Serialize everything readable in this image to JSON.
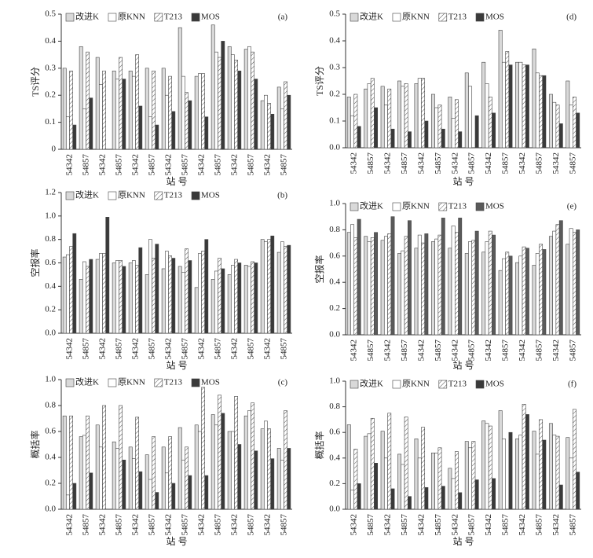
{
  "chart_data": [
    {
      "type": "bar",
      "panel_label": "(a)",
      "ylabel": "TS评分",
      "xlabel": "站 号",
      "legend": "top",
      "categories": [
        "54342",
        "54857",
        "54342",
        "54857",
        "54342",
        "54857",
        "54342",
        "54857",
        "54342",
        "54857",
        "54342",
        "54857",
        "54342",
        "54857"
      ],
      "ylim": [
        0,
        0.5
      ],
      "yticks": [
        0,
        0.1,
        0.2,
        0.3,
        0.4,
        0.5
      ],
      "series": [
        {
          "name": "改进K",
          "color": "#d9d9d9",
          "values": [
            0.3,
            0.38,
            0.34,
            0.29,
            0.29,
            0.3,
            0.3,
            0.45,
            0.27,
            0.46,
            0.38,
            0.37,
            0.18,
            0.23
          ]
        },
        {
          "name": "原KNN",
          "color": "#ffffff",
          "values": [
            0.12,
            0.15,
            0.24,
            0.26,
            0.27,
            0.12,
            0.2,
            0.27,
            0.28,
            0.36,
            0.35,
            0.38,
            0.2,
            0.15
          ]
        },
        {
          "name": "T213",
          "color": "#ffffff",
          "pattern": "diagonal",
          "values": [
            0.29,
            0.36,
            0.29,
            0.34,
            0.35,
            0.29,
            0.27,
            0.21,
            0.28,
            0.34,
            0.33,
            0.36,
            0.17,
            0.25
          ]
        },
        {
          "name": "MOS",
          "color": "#3a3a3a",
          "values": [
            0.09,
            0.19,
            0,
            0.26,
            0.16,
            0.09,
            0.14,
            0.18,
            0.12,
            0.4,
            0.29,
            0.26,
            0.13,
            0.2
          ]
        }
      ]
    },
    {
      "type": "bar",
      "panel_label": "(b)",
      "ylabel": "空报率",
      "xlabel": "站 号",
      "legend": "top",
      "categories": [
        "54342",
        "54857",
        "54342",
        "54857",
        "54342",
        "54857",
        "54342",
        "54857",
        "54342",
        "54857",
        "54342",
        "54857",
        "54342",
        "54857"
      ],
      "ylim": [
        0,
        1.2
      ],
      "yticks": [
        {
          "value": 0,
          "label": "0.0"
        },
        0.2,
        0.4,
        0.6,
        0.8,
        {
          "value": 1,
          "label": "1.0"
        },
        1.2
      ],
      "series": [
        {
          "name": "改进K",
          "color": "#d9d9d9",
          "values": [
            0.65,
            0.46,
            0.63,
            0.6,
            0.6,
            0.5,
            0.55,
            0.57,
            0.39,
            0.46,
            0.5,
            0.58,
            0.8,
            0.69
          ]
        },
        {
          "name": "原KNN",
          "color": "#ffffff",
          "values": [
            0.67,
            0.61,
            0.68,
            0.62,
            0.62,
            0.8,
            0.7,
            0.52,
            0.68,
            0.53,
            0.58,
            0.57,
            0.78,
            0.78
          ]
        },
        {
          "name": "T213",
          "color": "#ffffff",
          "pattern": "diagonal",
          "values": [
            0.74,
            0.57,
            0.68,
            0.62,
            0.58,
            0.64,
            0.66,
            0.72,
            0.7,
            0.64,
            0.63,
            0.61,
            0.8,
            0.74
          ]
        },
        {
          "name": "MOS",
          "color": "#3a3a3a",
          "values": [
            0.85,
            0.63,
            0.99,
            0.57,
            0.73,
            0.76,
            0.64,
            0.62,
            0.8,
            0.55,
            0.6,
            0.6,
            0.83,
            0.75
          ]
        }
      ]
    },
    {
      "type": "bar",
      "panel_label": "(c)",
      "ylabel": "概括率",
      "xlabel": "站 号",
      "legend": "top",
      "categories": [
        "54342",
        "54857",
        "54342",
        "54857",
        "54342",
        "54857",
        "54342",
        "54857",
        "54342",
        "54857",
        "54342",
        "54857",
        "54342",
        "54857"
      ],
      "ylim": [
        0,
        1
      ],
      "yticks": [
        {
          "value": 0,
          "label": "0.0"
        },
        0.2,
        0.4,
        0.6,
        0.8,
        {
          "value": 1,
          "label": "1.0"
        }
      ],
      "series": [
        {
          "name": "改进K",
          "color": "#d9d9d9",
          "values": [
            0.72,
            0.56,
            0.65,
            0.52,
            0.48,
            0.42,
            0.48,
            0.63,
            0.65,
            0.73,
            0.6,
            0.72,
            0.62,
            0.47
          ]
        },
        {
          "name": "原KNN",
          "color": "#ffffff",
          "values": [
            0.11,
            0.57,
            0.48,
            0.47,
            0.39,
            0.23,
            0.28,
            0.38,
            0.6,
            0.65,
            0.6,
            0.76,
            0.68,
            0.38
          ]
        },
        {
          "name": "T213",
          "color": "#ffffff",
          "pattern": "diagonal",
          "values": [
            0.72,
            0.72,
            0.8,
            0.8,
            0.71,
            0.56,
            0.56,
            0.48,
            0.94,
            0.88,
            0.87,
            0.82,
            0.62,
            0.76
          ]
        },
        {
          "name": "MOS",
          "color": "#3a3a3a",
          "values": [
            0.2,
            0.28,
            0,
            0.38,
            0.29,
            0.13,
            0.2,
            0.26,
            0.26,
            0.74,
            0.5,
            0.45,
            0.39,
            0.47
          ]
        }
      ]
    },
    {
      "type": "bar",
      "panel_label": "(d)",
      "ylabel": "TS评分",
      "xlabel": "站 号",
      "legend": "top",
      "categories": [
        "54342",
        "54857",
        "54342",
        "54857",
        "54342",
        "54857",
        "54342",
        "54857",
        "54342",
        "54857",
        "54342",
        "54857",
        "54342",
        "54857"
      ],
      "ylim": [
        0,
        0.5
      ],
      "yticks": [
        {
          "value": 0,
          "label": "0.0"
        },
        0.1,
        0.2,
        0.3,
        0.4,
        0.5
      ],
      "series": [
        {
          "name": "改进K",
          "color": "#d9d9d9",
          "values": [
            0.19,
            0.22,
            0.23,
            0.25,
            0.24,
            0.2,
            0.19,
            0.28,
            0.32,
            0.44,
            0.32,
            0.37,
            0.2,
            0.25
          ]
        },
        {
          "name": "原KNN",
          "color": "#ffffff",
          "values": [
            0.12,
            0.24,
            0.16,
            0.23,
            0.26,
            0.15,
            0.11,
            0.23,
            0.24,
            0.32,
            0.32,
            0.28,
            0.17,
            0.16
          ]
        },
        {
          "name": "T213",
          "color": "#ffffff",
          "pattern": "diagonal",
          "values": [
            0.2,
            0.26,
            0.22,
            0.24,
            0.26,
            0.16,
            0.18,
            0,
            0.19,
            0.36,
            0.31,
            0.27,
            0.16,
            0.19
          ]
        },
        {
          "name": "MOS",
          "color": "#3a3a3a",
          "values": [
            0.08,
            0.15,
            0.07,
            0.06,
            0.1,
            0.07,
            0.06,
            0.12,
            0.13,
            0.31,
            0.31,
            0.27,
            0.09,
            0.13
          ]
        }
      ]
    },
    {
      "type": "bar",
      "panel_label": "(e)",
      "ylabel": "空报率",
      "xlabel": "站 号",
      "legend": "top",
      "categories": [
        "54342",
        "54857",
        "54342",
        "54857",
        "54342",
        "54857",
        "54342",
        "54857",
        "54342",
        "54857",
        "54342",
        "54857",
        "54342",
        "54857"
      ],
      "ylim": [
        0,
        1
      ],
      "yticks": [
        {
          "value": 0,
          "label": "0.0"
        },
        0.2,
        0.4,
        0.6,
        0.8,
        {
          "value": 1,
          "label": "1.0"
        }
      ],
      "series": [
        {
          "name": "改进K",
          "color": "#d9d9d9",
          "values": [
            0.78,
            0.75,
            0.72,
            0.62,
            0.66,
            0.71,
            0.66,
            0.62,
            0.63,
            0.49,
            0.55,
            0.53,
            0.75,
            0.69
          ]
        },
        {
          "name": "原KNN",
          "color": "#ffffff",
          "values": [
            0.84,
            0.71,
            0.75,
            0.64,
            0.76,
            0.73,
            0.83,
            0.71,
            0.71,
            0.58,
            0.6,
            0.62,
            0.79,
            0.81
          ]
        },
        {
          "name": "T213",
          "color": "#ffffff",
          "pattern": "diagonal",
          "values": [
            0.74,
            0.74,
            0.77,
            0.75,
            0.7,
            0.76,
            0.78,
            0.72,
            0.79,
            0.63,
            0.67,
            0.69,
            0.84,
            0.78
          ]
        },
        {
          "name": "MOS",
          "color": "#5a5a5a",
          "values": [
            0.88,
            0.78,
            0.9,
            0.87,
            0.77,
            0.89,
            0.89,
            0.79,
            0.76,
            0.6,
            0.66,
            0.65,
            0.87,
            0.8
          ]
        }
      ]
    },
    {
      "type": "bar",
      "panel_label": "(f)",
      "ylabel": "概括率",
      "xlabel": "站 号",
      "legend": "top",
      "categories": [
        "54342",
        "54857",
        "54342",
        "54857",
        "54342",
        "54857",
        "54342",
        "54857",
        "54342",
        "54857",
        "54342",
        "54857",
        "54342",
        "54857"
      ],
      "ylim": [
        0,
        1
      ],
      "yticks": [
        {
          "value": 0,
          "label": "0.0"
        },
        0.2,
        0.4,
        0.6,
        0.8,
        {
          "value": 1,
          "label": "1.0"
        }
      ],
      "series": [
        {
          "name": "改进K",
          "color": "#d9d9d9",
          "values": [
            0.66,
            0.57,
            0.61,
            0.43,
            0.55,
            0.44,
            0.32,
            0.53,
            0.69,
            0.77,
            0.55,
            0.61,
            0.67,
            0.56
          ]
        },
        {
          "name": "原KNN",
          "color": "#ffffff",
          "values": [
            0.15,
            0.59,
            0.4,
            0.35,
            0.4,
            0.44,
            0.24,
            0.48,
            0.67,
            0.55,
            0.58,
            0.43,
            0.58,
            0.4
          ]
        },
        {
          "name": "T213",
          "color": "#ffffff",
          "pattern": "diagonal",
          "values": [
            0.47,
            0.71,
            0.75,
            0.72,
            0.64,
            0.48,
            0.45,
            0.53,
            0.65,
            0,
            0.82,
            0.7,
            0.57,
            0.78
          ]
        },
        {
          "name": "MOS",
          "color": "#3a3a3a",
          "values": [
            0.2,
            0.36,
            0.16,
            0.1,
            0.17,
            0.18,
            0.13,
            0.23,
            0.24,
            0.6,
            0.74,
            0.54,
            0.19,
            0.29
          ]
        }
      ]
    }
  ]
}
